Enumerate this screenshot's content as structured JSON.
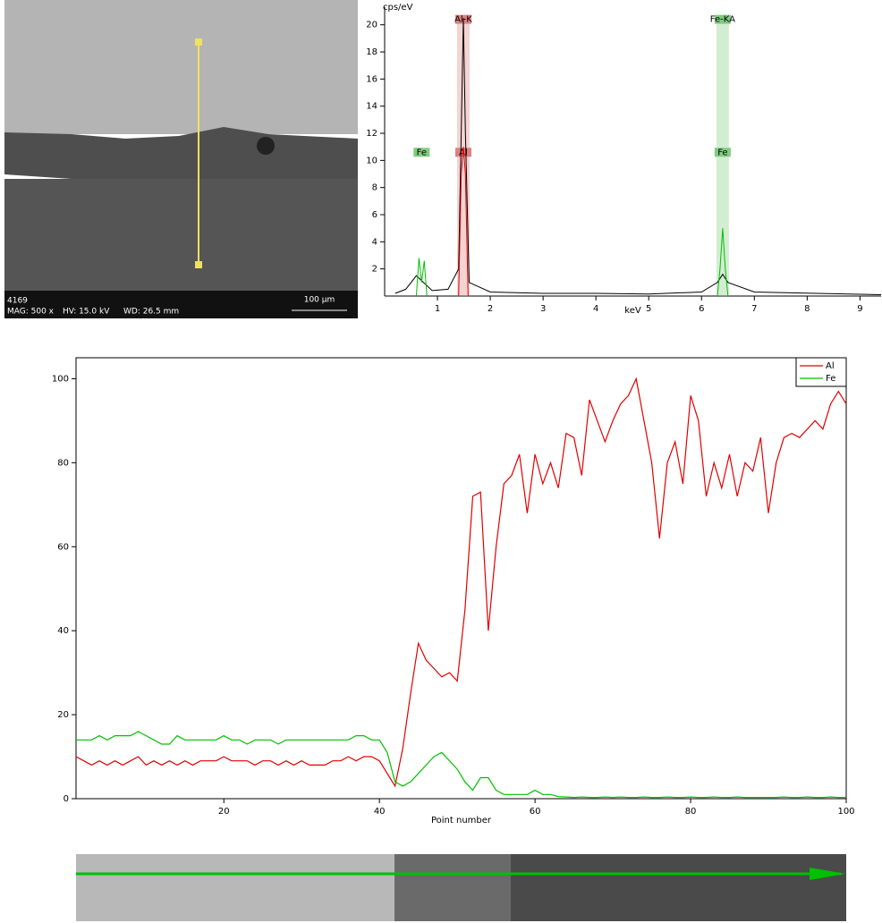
{
  "sem": {
    "id": "4169",
    "mag": "MAG: 500 x",
    "hv": "HV: 15.0 kV",
    "wd": "WD: 26.5 mm",
    "scale": "100 µm"
  },
  "chart_data": [
    {
      "type": "spectrum",
      "ylabel": "cps/eV",
      "xlabel": "keV",
      "xlim": [
        0,
        9.4
      ],
      "ylim": [
        0,
        21.3
      ],
      "xticks": [
        1,
        2,
        3,
        4,
        5,
        6,
        7,
        8,
        9
      ],
      "yticks": [
        2,
        4,
        6,
        8,
        10,
        12,
        14,
        16,
        18,
        20
      ],
      "markers": [
        {
          "label": "Al-K",
          "x": 1.49,
          "y": 20.4,
          "color": "#e08080"
        },
        {
          "label": "Fe-KA",
          "x": 6.4,
          "y": 20.4,
          "color": "#80cc80"
        },
        {
          "label": "Fe",
          "x": 0.7,
          "y": 10.6,
          "color": "#80cc80"
        },
        {
          "label": "Al",
          "x": 1.49,
          "y": 10.6,
          "color": "#e08080"
        },
        {
          "label": "Fe",
          "x": 6.4,
          "y": 10.6,
          "color": "#80cc80"
        }
      ],
      "series": [
        {
          "color": "#000000",
          "x": [
            0.2,
            0.4,
            0.6,
            0.9,
            1.2,
            1.4,
            1.45,
            1.49,
            1.53,
            1.6,
            2.0,
            3.0,
            4.0,
            5.0,
            6.0,
            6.3,
            6.4,
            6.5,
            7.0,
            9.4
          ],
          "values": [
            0.2,
            0.5,
            1.5,
            0.4,
            0.5,
            2,
            12,
            20.5,
            12,
            1,
            0.3,
            0.2,
            0.2,
            0.15,
            0.3,
            1,
            1.6,
            1,
            0.3,
            0.1
          ]
        },
        {
          "color": "#e00000",
          "x": [
            1.4,
            1.45,
            1.49,
            1.53,
            1.58
          ],
          "values": [
            0,
            9,
            11,
            9,
            0
          ]
        },
        {
          "color": "#00c000",
          "x": [
            0.6,
            0.65,
            0.7,
            0.75,
            0.8,
            null,
            6.3,
            6.35,
            6.4,
            6.45,
            6.5
          ],
          "values": [
            0,
            2.8,
            1,
            2.6,
            0,
            null,
            0,
            2,
            5,
            2,
            0
          ]
        }
      ]
    },
    {
      "type": "line",
      "xlabel": "Point number",
      "legend": "upper right",
      "xlim": [
        1,
        100
      ],
      "ylim": [
        0,
        105
      ],
      "xticks": [
        20,
        40,
        60,
        80,
        100
      ],
      "yticks": [
        0,
        20,
        40,
        60,
        80,
        100
      ],
      "x": [
        1,
        2,
        3,
        4,
        5,
        6,
        7,
        8,
        9,
        10,
        11,
        12,
        13,
        14,
        15,
        16,
        17,
        18,
        19,
        20,
        21,
        22,
        23,
        24,
        25,
        26,
        27,
        28,
        29,
        30,
        31,
        32,
        33,
        34,
        35,
        36,
        37,
        38,
        39,
        40,
        41,
        42,
        43,
        44,
        45,
        46,
        47,
        48,
        49,
        50,
        51,
        52,
        53,
        54,
        55,
        56,
        57,
        58,
        59,
        60,
        61,
        62,
        63,
        64,
        65,
        66,
        67,
        68,
        69,
        70,
        71,
        72,
        73,
        74,
        75,
        76,
        77,
        78,
        79,
        80,
        81,
        82,
        83,
        84,
        85,
        86,
        87,
        88,
        89,
        90,
        91,
        92,
        93,
        94,
        95,
        96,
        97,
        98,
        99,
        100
      ],
      "series": [
        {
          "name": "Al",
          "color": "#e00000",
          "values": [
            10,
            9,
            8,
            9,
            8,
            9,
            8,
            9,
            10,
            8,
            9,
            8,
            9,
            8,
            9,
            8,
            9,
            9,
            9,
            10,
            9,
            9,
            9,
            8,
            9,
            9,
            8,
            9,
            8,
            9,
            8,
            8,
            8,
            9,
            9,
            10,
            9,
            10,
            10,
            9,
            6,
            3,
            12,
            25,
            37,
            33,
            31,
            29,
            30,
            28,
            45,
            72,
            73,
            40,
            60,
            75,
            77,
            82,
            68,
            82,
            75,
            80,
            74,
            87,
            86,
            77,
            95,
            90,
            85,
            90,
            94,
            96,
            100,
            90,
            80,
            62,
            80,
            85,
            75,
            96,
            90,
            72,
            80,
            74,
            82,
            72,
            80,
            78,
            86,
            68,
            80,
            86,
            87,
            86,
            88,
            90,
            88,
            94,
            97,
            94
          ]
        },
        {
          "name": "Fe",
          "color": "#00c000",
          "values": [
            14,
            14,
            14,
            15,
            14,
            15,
            15,
            15,
            16,
            15,
            14,
            13,
            13,
            15,
            14,
            14,
            14,
            14,
            14,
            15,
            14,
            14,
            13,
            14,
            14,
            14,
            13,
            14,
            14,
            14,
            14,
            14,
            14,
            14,
            14,
            14,
            15,
            15,
            14,
            14,
            11,
            4,
            3,
            4,
            6,
            8,
            10,
            11,
            9,
            7,
            4,
            2,
            5,
            5,
            2,
            1,
            1,
            1,
            1,
            2,
            1,
            1,
            0.5,
            0.4,
            0.3,
            0.4,
            0.3,
            0.3,
            0.4,
            0.3,
            0.4,
            0.3,
            0.3,
            0.4,
            0.3,
            0.3,
            0.4,
            0.3,
            0.3,
            0.4,
            0.3,
            0.3,
            0.4,
            0.3,
            0.3,
            0.4,
            0.3,
            0.3,
            0.3,
            0.3,
            0.3,
            0.4,
            0.3,
            0.3,
            0.4,
            0.3,
            0.3,
            0.4,
            0.3,
            0.3
          ]
        }
      ]
    }
  ]
}
